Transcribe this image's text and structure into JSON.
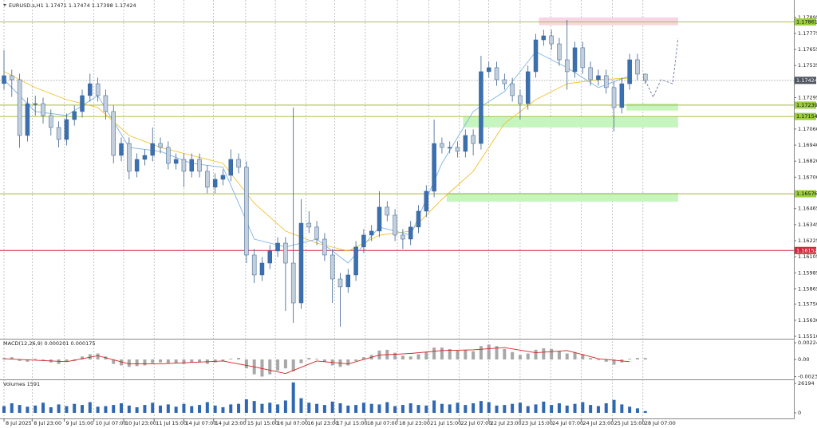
{
  "chart_data": [
    {
      "type": "candlestick",
      "symbol": "EURUSD.s,H1",
      "open": [
        1.174,
        1.17459,
        1.17429,
        1.17012,
        1.1725,
        1.1725,
        1.17161,
        1.17072,
        1.16982,
        1.17131,
        1.17191,
        1.1731,
        1.17399,
        1.1731,
        1.17191,
        1.16863,
        1.16952,
        1.16744,
        1.16833,
        1.16863,
        1.16952,
        1.16923,
        1.16803,
        1.16833,
        1.16744,
        1.16833,
        1.16744,
        1.16625,
        1.16684,
        1.16714,
        1.16833,
        1.16774,
        1.16118,
        1.15969,
        1.16058,
        1.16148,
        1.16207,
        1.16058,
        1.1576,
        1.16356,
        1.16327,
        1.16237,
        1.16118,
        1.15939,
        1.1588,
        1.15969,
        1.16178,
        1.16267,
        1.16297,
        1.16476,
        1.16416,
        1.16267,
        1.16237,
        1.16327,
        1.16446,
        1.16595,
        1.16952,
        1.16923,
        1.16923,
        1.16893,
        1.17012,
        1.16952,
        1.17489,
        1.17519,
        1.17429,
        1.17399,
        1.1731,
        1.1725,
        1.17489,
        1.17727,
        1.17757,
        1.17697,
        1.17578,
        1.17489,
        1.17668,
        1.17519,
        1.17429,
        1.17459,
        1.1737,
        1.17221,
        1.17399,
        1.17578,
        1.17471
      ],
      "high": [
        1.1765,
        1.17504,
        1.17474,
        1.17295,
        1.1731,
        1.17295,
        1.17206,
        1.17117,
        1.17176,
        1.17236,
        1.17355,
        1.17474,
        1.17444,
        1.17355,
        1.17236,
        1.16997,
        1.16997,
        1.16878,
        1.16908,
        1.17072,
        1.16997,
        1.16968,
        1.16878,
        1.16878,
        1.16878,
        1.16878,
        1.16789,
        1.16729,
        1.16759,
        1.16908,
        1.16878,
        1.16819,
        1.16163,
        1.16103,
        1.16193,
        1.16252,
        1.16252,
        1.17221,
        1.16536,
        1.16446,
        1.16372,
        1.16282,
        1.16163,
        1.15984,
        1.16014,
        1.16223,
        1.16312,
        1.16342,
        1.16595,
        1.16521,
        1.16461,
        1.16312,
        1.16372,
        1.16491,
        1.1664,
        1.17131,
        1.16997,
        1.16968,
        1.16968,
        1.17057,
        1.17057,
        1.17608,
        1.17564,
        1.17564,
        1.17474,
        1.17444,
        1.17355,
        1.17534,
        1.17772,
        1.17802,
        1.17802,
        1.17742,
        1.17876,
        1.17713,
        1.17713,
        1.17564,
        1.17504,
        1.17504,
        1.17415,
        1.17444,
        1.17623,
        1.17623,
        1.17474
      ],
      "low": [
        1.17355,
        1.173,
        1.1692,
        1.16967,
        1.1716,
        1.17101,
        1.17012,
        1.16923,
        1.16937,
        1.17086,
        1.17146,
        1.17265,
        1.17265,
        1.17131,
        1.16803,
        1.16818,
        1.16684,
        1.16699,
        1.16788,
        1.16818,
        1.16878,
        1.16758,
        1.16758,
        1.16625,
        1.16699,
        1.16699,
        1.1658,
        1.1658,
        1.16639,
        1.16669,
        1.16729,
        1.16058,
        1.15909,
        1.15924,
        1.16013,
        1.16103,
        1.157,
        1.15611,
        1.15715,
        1.16282,
        1.16192,
        1.16073,
        1.1576,
        1.15582,
        1.15835,
        1.15924,
        1.16133,
        1.16222,
        1.16252,
        1.16371,
        1.16222,
        1.16163,
        1.16192,
        1.16282,
        1.16401,
        1.1655,
        1.16878,
        1.16878,
        1.16848,
        1.16848,
        1.16863,
        1.16907,
        1.17444,
        1.17384,
        1.17354,
        1.17265,
        1.17131,
        1.17205,
        1.17444,
        1.17682,
        1.17652,
        1.17533,
        1.17354,
        1.17444,
        1.17474,
        1.17384,
        1.17384,
        1.17325,
        1.17042,
        1.17176,
        1.17354,
        1.17426,
        1.17398
      ],
      "close": [
        1.17459,
        1.17429,
        1.17012,
        1.1725,
        1.1725,
        1.17161,
        1.17072,
        1.16982,
        1.17131,
        1.17191,
        1.1731,
        1.17399,
        1.1731,
        1.17191,
        1.16863,
        1.16952,
        1.16744,
        1.16833,
        1.16863,
        1.16952,
        1.16923,
        1.16803,
        1.16833,
        1.16744,
        1.16833,
        1.16744,
        1.16625,
        1.16684,
        1.16714,
        1.16833,
        1.16774,
        1.16118,
        1.15969,
        1.16058,
        1.16148,
        1.16207,
        1.16058,
        1.1576,
        1.16356,
        1.16327,
        1.16237,
        1.16118,
        1.15939,
        1.1588,
        1.15969,
        1.16178,
        1.16267,
        1.16297,
        1.16476,
        1.16416,
        1.16267,
        1.16237,
        1.16327,
        1.16446,
        1.16595,
        1.16952,
        1.16923,
        1.16923,
        1.16893,
        1.17012,
        1.16952,
        1.17489,
        1.17519,
        1.17429,
        1.17399,
        1.1731,
        1.1725,
        1.17489,
        1.17727,
        1.17757,
        1.17697,
        1.17578,
        1.17489,
        1.17668,
        1.17519,
        1.17429,
        1.17459,
        1.1737,
        1.17221,
        1.17399,
        1.17578,
        1.17471,
        1.17424
      ],
      "up_color": "#3a6fb0",
      "down_color": "#c3cfdc",
      "xlim": [
        -0.51,
        101.0
      ],
      "ylim": [
        1.15492,
        1.18025
      ],
      "yticks": [
        1.17895,
        1.17775,
        1.17655,
        1.17535,
        1.17295,
        {
          "value": 1.1706,
          "label": "1.17060"
        },
        {
          "value": 1.1694,
          "label": "1.16940"
        },
        {
          "value": 1.1682,
          "label": "1.16820"
        },
        {
          "value": 1.167,
          "label": "1.16700"
        },
        1.16465,
        1.16345,
        1.16225,
        1.16105,
        1.15985,
        1.15865,
        {
          "value": 1.1575,
          "label": "1.15750"
        },
        {
          "value": 1.1563,
          "label": "1.15630"
        },
        {
          "value": 1.1551,
          "label": "1.15510"
        }
      ],
      "xticks": [
        {
          "value": 0,
          "label": "8 Jul 2025"
        },
        {
          "value": 3.6,
          "label": "8 Jul 23:00"
        },
        {
          "value": 7.7,
          "label": "9 Jul 15:00"
        },
        {
          "value": 11.5,
          "label": "10 Jul 07:00"
        },
        {
          "value": 15.3,
          "label": "10 Jul 23:00"
        },
        {
          "value": 19.2,
          "label": "11 Jul 15:00"
        },
        {
          "value": 23,
          "label": "14 Jul 07:00"
        },
        {
          "value": 26.8,
          "label": "14 Jul 23:00"
        },
        {
          "value": 30.9,
          "label": "15 Jul 15:00"
        },
        {
          "value": 34.7,
          "label": "16 Jul 07:00"
        },
        {
          "value": 38.6,
          "label": "16 Jul 23:00"
        },
        {
          "value": 42.3,
          "label": "17 Jul 15:00"
        },
        {
          "value": 46.2,
          "label": "18 Jul 07:00"
        },
        {
          "value": 50.3,
          "label": "18 Jul 23:00"
        },
        {
          "value": 54.3,
          "label": "21 Jul 15:00"
        },
        {
          "value": 58.2,
          "label": "22 Jul 07:00"
        },
        {
          "value": 62,
          "label": "22 Jul 23:00"
        },
        {
          "value": 66,
          "label": "23 Jul 15:00"
        },
        {
          "value": 69.9,
          "label": "24 Jul 07:00"
        },
        {
          "value": 73.8,
          "label": "24 Jul 23:00"
        },
        {
          "value": 77.8,
          "label": "25 Jul 15:00"
        },
        {
          "value": 81.7,
          "label": "28 Jul 07:00"
        }
      ],
      "lines": [
        {
          "color": "#f0c030",
          "index": [
            0,
            4,
            8,
            12,
            16,
            20,
            24,
            28,
            32,
            36,
            40,
            44,
            48,
            52,
            56,
            60,
            64,
            68,
            72,
            76,
            80
          ],
          "values": [
            1.17489,
            1.1737,
            1.1728,
            1.17221,
            1.17012,
            1.16923,
            1.16863,
            1.16803,
            1.16505,
            1.16297,
            1.16207,
            1.16148,
            1.16267,
            1.16297,
            1.16535,
            1.16744,
            1.17101,
            1.1728,
            1.17399,
            1.17429,
            1.17441
          ]
        },
        {
          "color": "#7fb2e5",
          "index": [
            0,
            4,
            8,
            12,
            16,
            20,
            24,
            28,
            32,
            36,
            40,
            44,
            48,
            52,
            56,
            60,
            64,
            68,
            72,
            76,
            80
          ],
          "values": [
            1.17429,
            1.17191,
            1.17161,
            1.1731,
            1.16923,
            1.16893,
            1.16803,
            1.16774,
            1.16237,
            1.16178,
            1.16237,
            1.16058,
            1.16327,
            1.16267,
            1.16803,
            1.17191,
            1.1734,
            1.17638,
            1.17519,
            1.1737,
            1.17459
          ]
        }
      ],
      "zones": [
        {
          "from": 1.17895,
          "to": 1.17836,
          "x_start": 68.4,
          "x_end": 86.2,
          "color": "#f8d6de"
        },
        {
          "from": 1.17251,
          "to": 1.17198,
          "x_start": 79.6,
          "x_end": 86.2,
          "color": "#c6f5bf"
        },
        {
          "from": 1.17155,
          "to": 1.17072,
          "x_start": 58.7,
          "x_end": 86.2,
          "color": "#c6f5bf"
        },
        {
          "from": 1.16583,
          "to": 1.16517,
          "x_start": 56.6,
          "x_end": 86.2,
          "color": "#c6f5bf"
        }
      ],
      "levels": [
        {
          "value": 1.17861,
          "color": "#a3b935",
          "label_color": "#9ccf3e"
        },
        {
          "value": 1.17239,
          "color": "#a3b935",
          "label_color": "#9ccf3e"
        },
        {
          "value": 1.17154,
          "color": "#a3b935",
          "label_color": "#9ccf3e"
        },
        {
          "value": 1.16576,
          "color": "#a3b935",
          "label_color": "#9ccf3e"
        },
        {
          "value": 1.16152,
          "color": "#d0283c",
          "label_color": "#d0283c"
        }
      ],
      "projection": {
        "color": "#7a86b0",
        "x": [
          82,
          83,
          84,
          85.5,
          86.2
        ],
        "values": [
          1.17424,
          1.17298,
          1.17429,
          1.17399,
          1.17739
        ]
      }
    },
    {
      "type": "macd",
      "title": "MACD(12,26,9)",
      "readout": [
        0.000201,
        0.000175
      ],
      "values": [
        0.0002,
        0.0003,
        -0.0002,
        -0.0003,
        0.0001,
        -0.0001,
        -0.0004,
        -0.0006,
        -0.0003,
        -0.0002,
        0.0004,
        0.0007,
        0.0008,
        0.0004,
        -0.0006,
        -0.0008,
        -0.001,
        -0.0009,
        -0.0008,
        -0.0005,
        -0.0004,
        -0.0005,
        -0.0005,
        -0.0006,
        -0.0004,
        -0.0004,
        -0.0006,
        -0.0004,
        -0.0002,
        0.0001,
        0.0002,
        -0.0012,
        -0.002,
        -0.0023,
        -0.002,
        -0.0015,
        -0.0012,
        -0.0016,
        -0.0005,
        0.0002,
        0.0001,
        -0.0003,
        -0.0008,
        -0.001,
        -0.0008,
        -0.0002,
        0.0003,
        0.0006,
        0.0012,
        0.0013,
        0.0009,
        0.0005,
        0.0004,
        0.0007,
        0.001,
        0.0016,
        0.0016,
        0.0014,
        0.0012,
        0.0013,
        0.0011,
        0.0018,
        0.002,
        0.0018,
        0.0014,
        0.001,
        0.0006,
        0.0008,
        0.0013,
        0.0015,
        0.0014,
        0.0011,
        0.0008,
        0.001,
        0.0007,
        0.0002,
        -0.0001,
        -0.0003,
        -0.0007,
        -0.0004,
        0.0001,
        0.0002,
        0.0002
      ],
      "color": "#a8a8a8",
      "signal": {
        "color": "#d42020",
        "index": [
          0,
          4,
          8,
          12,
          16,
          20,
          24,
          28,
          32,
          36,
          40,
          44,
          48,
          52,
          56,
          60,
          64,
          68,
          72,
          76,
          80
        ],
        "values": [
          0.0001,
          -0.0001,
          -0.0003,
          0.0005,
          -0.0006,
          -0.0006,
          -0.0004,
          -0.0002,
          -0.001,
          -0.0019,
          -0.0002,
          -0.0006,
          0.0006,
          0.0008,
          0.0012,
          0.0013,
          0.0016,
          0.0009,
          0.0012,
          0.0001,
          -0.0003
        ]
      },
      "ylim": [
        -0.00268,
        0.00268
      ],
      "yticks": [
        0.002242,
        {
          "value": 0,
          "label": "0.00"
        },
        -0.002316
      ]
    },
    {
      "type": "bar",
      "title": "Volumes",
      "color": "#2f68b0",
      "values": [
        6000,
        8500,
        7000,
        5500,
        6500,
        9000,
        5000,
        7500,
        6000,
        8000,
        7000,
        9500,
        5500,
        6000,
        7000,
        8500,
        6500,
        5000,
        7000,
        9000,
        6500,
        7500,
        5500,
        8000,
        6000,
        7000,
        9500,
        6500,
        5000,
        7500,
        8000,
        12000,
        10500,
        8000,
        9000,
        7500,
        11000,
        27000,
        13000,
        9000,
        8000,
        7000,
        10000,
        8500,
        6500,
        7000,
        9000,
        8000,
        7500,
        9500,
        6000,
        7000,
        8500,
        7000,
        6500,
        11000,
        8000,
        7500,
        9000,
        7000,
        8500,
        10500,
        9500,
        6500,
        7000,
        8000,
        9000,
        6000,
        7500,
        10000,
        7000,
        8500,
        6500,
        8000,
        9500,
        7000,
        6000,
        8500,
        11500,
        7500,
        5500,
        4000,
        1591
      ],
      "ylim": [
        0,
        29000
      ],
      "yticks": [
        26194,
        0
      ]
    }
  ]
}
